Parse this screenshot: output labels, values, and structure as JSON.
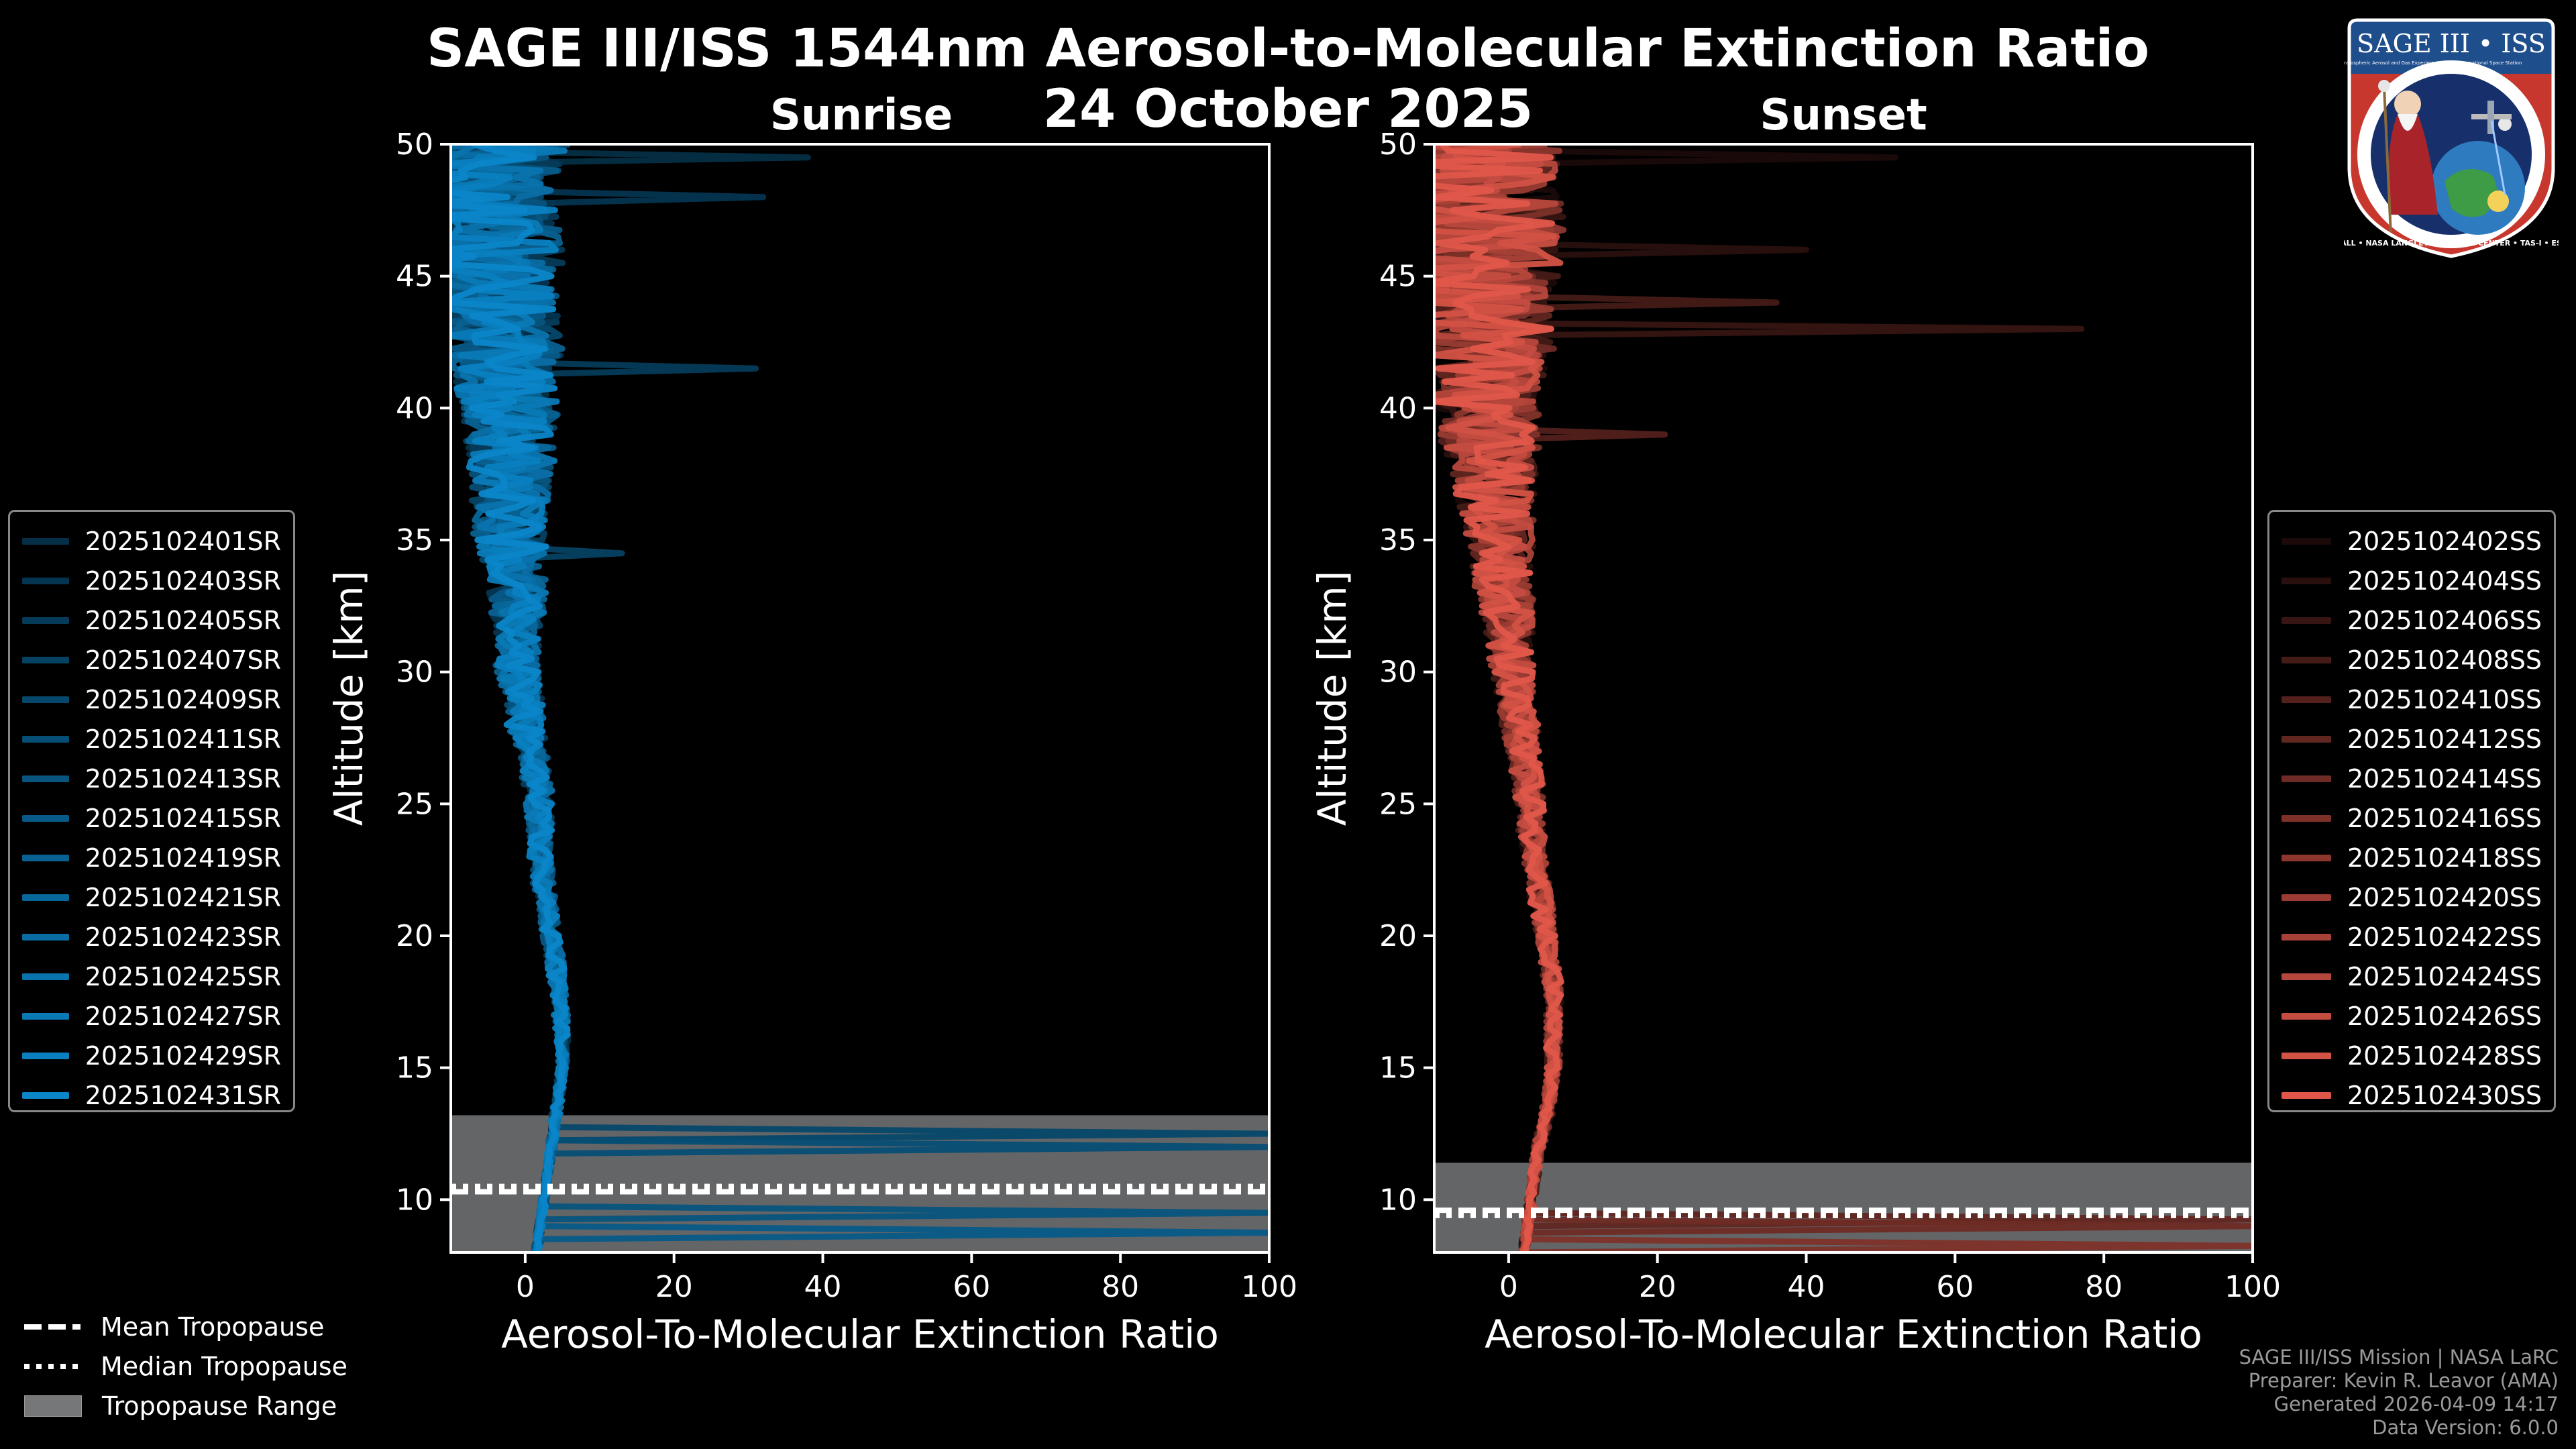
{
  "title_line1": "SAGE III/ISS 1544nm Aerosol-to-Molecular Extinction Ratio",
  "title_line2": "24 October 2025",
  "colors": {
    "sunrise_base": "#0b86c9",
    "sunset_base": "#e0574a",
    "tropopause_range": "#757779"
  },
  "logo": {
    "title": "SAGE III • ISS",
    "ring_text": "BALL • NASA LANGLEY RESEARCH CENTER • TAS-I • ESA",
    "small_left": "Stratospheric Aerosol and Gas Experiment III",
    "small_right": "International Space Station"
  },
  "bottom_legend": {
    "mean": "Mean Tropopause",
    "median": "Median Tropopause",
    "range": "Tropopause Range"
  },
  "footer": {
    "line1": "SAGE III/ISS Mission | NASA LaRC",
    "line2": "Preparer: Kevin R. Leavor (AMA)",
    "line3": "Generated 2026-04-09 14:17",
    "line4": "Data Version: 6.0.0"
  },
  "chart_data": [
    {
      "type": "line",
      "panel": "Sunrise",
      "title": "Sunrise",
      "xlabel": "Aerosol-To-Molecular Extinction Ratio",
      "ylabel": "Altitude [km]",
      "xlim": [
        -10,
        100
      ],
      "ylim": [
        8,
        50
      ],
      "xticks": [
        0,
        20,
        40,
        60,
        80,
        100
      ],
      "yticks": [
        10,
        15,
        20,
        25,
        30,
        35,
        40,
        45,
        50
      ],
      "tropopause": {
        "mean": 10.3,
        "median": 10.5,
        "range": [
          8,
          13.2
        ]
      },
      "legend_position": "left",
      "series_names": [
        "2025102401SR",
        "2025102403SR",
        "2025102405SR",
        "2025102407SR",
        "2025102409SR",
        "2025102411SR",
        "2025102413SR",
        "2025102415SR",
        "2025102419SR",
        "2025102421SR",
        "2025102423SR",
        "2025102425SR",
        "2025102427SR",
        "2025102429SR",
        "2025102431SR"
      ],
      "profile_shape": {
        "altitudes": [
          8,
          9,
          10,
          11,
          12,
          13,
          14,
          15,
          16,
          17,
          18,
          19,
          20,
          21,
          22,
          23,
          24,
          25,
          26,
          27,
          28,
          29,
          30,
          31,
          32,
          33,
          34,
          35,
          36,
          37,
          38,
          39,
          40,
          41,
          42,
          43,
          44,
          45,
          46,
          47,
          48,
          49,
          50
        ],
        "values": [
          1.5,
          2,
          2.5,
          3,
          3.5,
          4,
          4.5,
          5,
          5,
          4.8,
          4.5,
          4,
          3.5,
          3,
          2.5,
          2,
          2,
          2,
          1.5,
          1,
          0,
          0,
          -1,
          -1,
          -1,
          -1,
          -1.5,
          -2,
          -2,
          -2,
          -2,
          -2,
          -2,
          -3,
          -3,
          -3,
          -4,
          -4,
          -4,
          -5,
          -5,
          -5,
          -5
        ],
        "noise": [
          0.5,
          0.4,
          0.4,
          0.4,
          0.5,
          0.6,
          0.6,
          0.6,
          0.8,
          1,
          1,
          1.2,
          1.2,
          1.2,
          1.5,
          1.5,
          1.6,
          2,
          2,
          2,
          2.5,
          2.5,
          3,
          3,
          3.5,
          4,
          4,
          5,
          5,
          5.5,
          6,
          6,
          6.5,
          7,
          8,
          8,
          8,
          9,
          10,
          10,
          10,
          11,
          11
        ]
      },
      "spikes": [
        {
          "alt": 49.6,
          "value": 38
        },
        {
          "alt": 48.0,
          "value": 32
        },
        {
          "alt": 41.5,
          "value": 31
        },
        {
          "alt": 34.5,
          "value": 13
        },
        {
          "alt": 12.5,
          "value": 100
        },
        {
          "alt": 11.9,
          "value": 100
        },
        {
          "alt": 9.5,
          "value": 100
        },
        {
          "alt": 8.8,
          "value": 100
        }
      ]
    },
    {
      "type": "line",
      "panel": "Sunset",
      "title": "Sunset",
      "xlabel": "Aerosol-To-Molecular Extinction Ratio",
      "ylabel": "Altitude [km]",
      "xlim": [
        -10,
        100
      ],
      "ylim": [
        8,
        50
      ],
      "xticks": [
        0,
        20,
        40,
        60,
        80,
        100
      ],
      "yticks": [
        10,
        15,
        20,
        25,
        30,
        35,
        40,
        45,
        50
      ],
      "tropopause": {
        "mean": 9.6,
        "median": 9.4,
        "range": [
          8,
          11.4
        ]
      },
      "legend_position": "right",
      "series_names": [
        "2025102402SS",
        "2025102404SS",
        "2025102406SS",
        "2025102408SS",
        "2025102410SS",
        "2025102412SS",
        "2025102414SS",
        "2025102416SS",
        "2025102418SS",
        "2025102420SS",
        "2025102422SS",
        "2025102424SS",
        "2025102426SS",
        "2025102428SS",
        "2025102430SS"
      ],
      "profile_shape": {
        "altitudes": [
          8,
          9,
          10,
          11,
          12,
          13,
          14,
          15,
          16,
          17,
          18,
          19,
          20,
          21,
          22,
          23,
          24,
          25,
          26,
          27,
          28,
          29,
          30,
          31,
          32,
          33,
          34,
          35,
          36,
          37,
          38,
          39,
          40,
          41,
          42,
          43,
          44,
          45,
          46,
          47,
          48,
          49,
          50
        ],
        "values": [
          2,
          2.5,
          3,
          3.5,
          4,
          5,
          5.5,
          6,
          6,
          6,
          6,
          5.5,
          5,
          4.5,
          4,
          3.5,
          3,
          3,
          2.5,
          2,
          1.5,
          1,
          0.5,
          0,
          0,
          -0.5,
          -1,
          -1,
          -1.5,
          -2,
          -2,
          -2.5,
          -3,
          -3,
          -3,
          -3.5,
          -4,
          -4,
          -4,
          -4.5,
          -5,
          -5,
          -5
        ],
        "noise": [
          0.5,
          0.5,
          0.6,
          0.6,
          0.7,
          0.8,
          0.8,
          0.9,
          1,
          1,
          1.2,
          1.2,
          1.3,
          1.5,
          1.5,
          1.6,
          1.8,
          2,
          2,
          2.2,
          2.5,
          2.5,
          3,
          3,
          3.5,
          4,
          4,
          4.5,
          5,
          5.5,
          6,
          7,
          7,
          8,
          9,
          10,
          10,
          11,
          11,
          12,
          12,
          12,
          12
        ]
      },
      "spikes": [
        {
          "alt": 49.6,
          "value": 52
        },
        {
          "alt": 46.0,
          "value": 40
        },
        {
          "alt": 43.0,
          "value": 77
        },
        {
          "alt": 44.0,
          "value": 36
        },
        {
          "alt": 39.0,
          "value": 21
        },
        {
          "alt": 9.3,
          "value": 100
        },
        {
          "alt": 8.9,
          "value": 100
        },
        {
          "alt": 8.3,
          "value": 100
        }
      ]
    }
  ]
}
